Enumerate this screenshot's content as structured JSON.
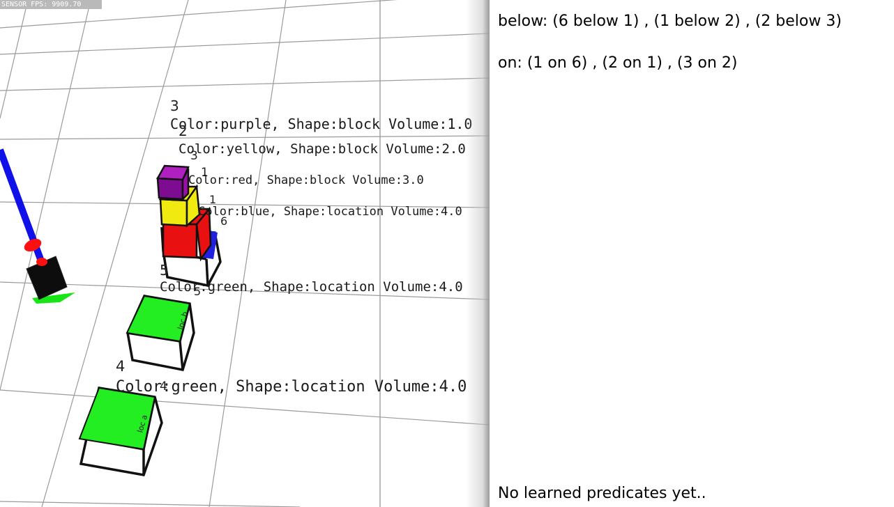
{
  "sensor_fps": "SENSOR FPS: 9909.70",
  "predicates": {
    "below": {
      "label": "below:",
      "pairs": [
        "(6 below 1)",
        "(1 below 2)",
        "(2 below 3)"
      ]
    },
    "on": {
      "label": "on:",
      "pairs": [
        "(1 on 6)",
        "(2 on 1)",
        "(3 on 2)"
      ]
    },
    "learned_status": "No learned predicates yet.."
  },
  "objects": {
    "obj3": {
      "id": "3",
      "desc": "Color:purple, Shape:block Volume:1.0",
      "color": "#9a10a8"
    },
    "obj2": {
      "id": "2",
      "desc": "Color:yellow, Shape:block Volume:2.0",
      "color": "#f0ea10"
    },
    "obj1": {
      "id": "1",
      "desc": "Color:red, Shape:block Volume:3.0",
      "color": "#e81010"
    },
    "obj6": {
      "id": "6",
      "desc": "Color:blue, Shape:location Volume:4.0",
      "color": "#2020e0"
    },
    "obj5": {
      "id": "5",
      "desc": "Color:green, Shape:location Volume:4.0",
      "color": "#22ee22",
      "tag": "loc b"
    },
    "obj4": {
      "id": "4",
      "desc": "Color:green, Shape:location Volume:4.0",
      "color": "#22ee22",
      "tag": "loc a"
    }
  },
  "small_ids": {
    "a": "3",
    "b": "2",
    "c": "1",
    "d": "6",
    "e": "5",
    "f": "4"
  }
}
